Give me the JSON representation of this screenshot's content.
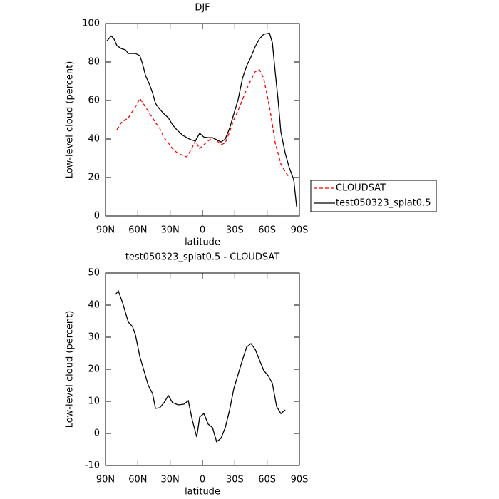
{
  "chart_data": [
    {
      "type": "line",
      "title": "DJF",
      "x_label": "latitude",
      "y_label": "Low-level cloud (percent)",
      "x": [
        88.7,
        84.7,
        82.1,
        79.4,
        75.4,
        71.5,
        68.8,
        62.2,
        58.2,
        55.6,
        52.9,
        48.9,
        46.3,
        43.6,
        39.7,
        35.7,
        31.7,
        27.8,
        23.8,
        18.5,
        14.6,
        10.6,
        6.6,
        2.6,
        -1.3,
        -5.3,
        -9.3,
        -13.2,
        -17.2,
        -21.2,
        -25.2,
        -29.1,
        -33.1,
        -37.1,
        -41,
        -45,
        -49,
        -52.9,
        -56.9,
        -62.2,
        -64.9,
        -67.5,
        -70.2,
        -72.8,
        -76.8,
        -80.7,
        -84.7,
        -87.4
      ],
      "series": [
        {
          "name": "CLOUDSAT",
          "color": "#ff0000",
          "line_style": "dashed",
          "values": [
            null,
            null,
            null,
            44.8,
            48.5,
            50,
            51,
            56.7,
            61,
            59,
            56.7,
            53,
            51,
            48.5,
            45.6,
            40.7,
            38,
            35,
            33,
            31.5,
            30.7,
            34.4,
            39,
            35,
            37,
            39,
            40.7,
            39.3,
            37,
            38,
            43.7,
            50,
            54.8,
            60.4,
            66,
            70.7,
            75,
            76,
            71.5,
            56.7,
            47.4,
            38,
            32.6,
            27,
            23,
            20,
            null,
            null
          ]
        },
        {
          "name": "test050323_splat0.5",
          "color": "#000000",
          "line_style": "solid",
          "values": [
            91,
            93.5,
            92,
            88.5,
            87,
            86.3,
            84.4,
            84.4,
            83.3,
            79,
            73,
            68,
            64,
            58.5,
            55.5,
            53,
            51,
            47.4,
            44.8,
            42,
            40.7,
            39.6,
            39,
            43,
            41,
            40.7,
            40.7,
            39.6,
            38.5,
            40,
            45.6,
            53,
            60.4,
            71.5,
            78,
            82.6,
            88,
            92,
            94.4,
            95,
            90,
            75,
            60.4,
            43.7,
            32.6,
            25,
            19,
            4.8
          ]
        }
      ],
      "xlim": [
        90,
        -90
      ],
      "xticks": [
        {
          "value": 90,
          "label": "90N"
        },
        {
          "value": 60,
          "label": "60N"
        },
        {
          "value": 30,
          "label": "30N"
        },
        0,
        {
          "value": -30,
          "label": "30S"
        },
        {
          "value": -60,
          "label": "60S"
        },
        {
          "value": -90,
          "label": "90S"
        }
      ],
      "ylim": [
        0,
        100
      ],
      "yticks": [
        0,
        20,
        40,
        60,
        80,
        100
      ],
      "legend": "right"
    },
    {
      "type": "line",
      "title": "test050323_splat0.5 - CLOUDSAT",
      "x_label": "latitude",
      "y_label": "Low-level cloud (percent)",
      "x": [
        80.7,
        78.1,
        74.1,
        68.8,
        64.9,
        62.2,
        58.2,
        54.3,
        50.3,
        46.3,
        43.6,
        39.7,
        35.7,
        31.7,
        27.8,
        22.5,
        17.2,
        13.2,
        9.3,
        5.3,
        2.6,
        -1.3,
        -5.3,
        -9.3,
        -13.2,
        -17.2,
        -21.2,
        -25.2,
        -29.1,
        -33.1,
        -37.1,
        -41,
        -45,
        -49,
        -52.9,
        -56.9,
        -61,
        -64.9,
        -68.8,
        -72.8,
        -76.8
      ],
      "series": [
        {
          "color": "#000000",
          "line_style": "solid",
          "values": [
            43.3,
            44.4,
            40.7,
            34.7,
            33.3,
            30.7,
            24,
            19.6,
            15,
            12.4,
            7.8,
            8,
            9.6,
            11.8,
            9.6,
            8.9,
            9.1,
            10.2,
            4,
            -1.1,
            5.1,
            6.2,
            2.9,
            1.8,
            -2.6,
            -1.5,
            1.8,
            7.3,
            14,
            18.4,
            22.9,
            26.9,
            28,
            26.2,
            22.9,
            19.6,
            18,
            15.6,
            8.4,
            6.2,
            7.3
          ]
        }
      ],
      "xlim": [
        90,
        -90
      ],
      "xticks": [
        {
          "value": 90,
          "label": "90N"
        },
        {
          "value": 60,
          "label": "60N"
        },
        {
          "value": 30,
          "label": "30N"
        },
        0,
        {
          "value": -30,
          "label": "30S"
        },
        {
          "value": -60,
          "label": "60S"
        },
        {
          "value": -90,
          "label": "90S"
        }
      ],
      "ylim": [
        -10,
        50
      ],
      "yticks": [
        -10,
        0,
        10,
        20,
        30,
        40,
        50
      ]
    }
  ]
}
